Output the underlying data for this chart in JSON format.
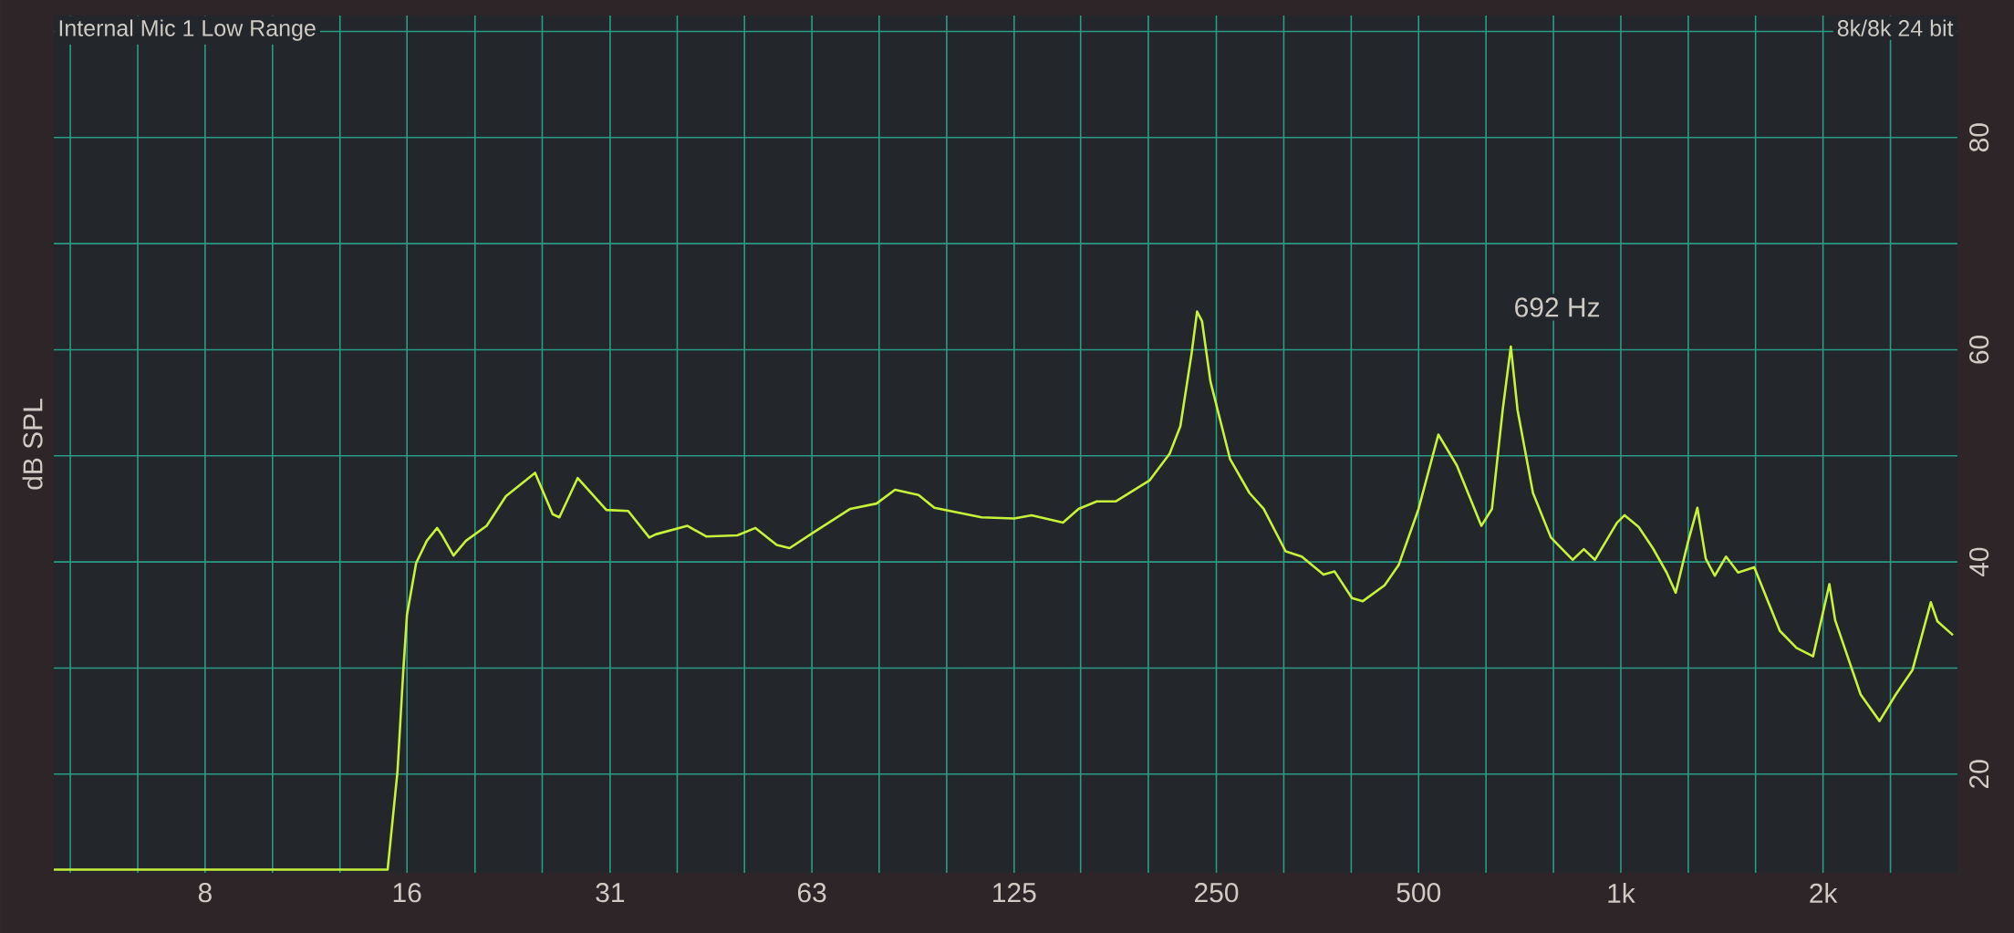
{
  "chart_data": {
    "type": "line",
    "ylabel": "dB SPL",
    "log": "x",
    "grid": true,
    "annotations": [
      "Internal Mic 1 Low Range",
      "8k/8k 24 bit",
      {
        "text": "692 Hz",
        "x": 692,
        "y": 60.3
      }
    ],
    "xlim": [
      4.65,
      3170
    ],
    "ylim": [
      10.7,
      91.5
    ],
    "xticks": [
      {
        "value": 4.92,
        "label": null
      },
      {
        "value": 6.2,
        "label": null
      },
      {
        "value": 7.81,
        "label": "8"
      },
      {
        "value": 9.84,
        "label": null
      },
      {
        "value": 12.4,
        "label": null
      },
      {
        "value": 15.6,
        "label": "16"
      },
      {
        "value": 19.7,
        "label": null
      },
      {
        "value": 24.8,
        "label": null
      },
      {
        "value": 31.3,
        "label": "31"
      },
      {
        "value": 39.4,
        "label": null
      },
      {
        "value": 49.6,
        "label": null
      },
      {
        "value": 62.5,
        "label": "63"
      },
      {
        "value": 78.7,
        "label": null
      },
      {
        "value": 99.2,
        "label": null
      },
      125,
      {
        "value": 157,
        "label": null
      },
      {
        "value": 198,
        "label": null
      },
      250,
      {
        "value": 315,
        "label": null
      },
      {
        "value": 397,
        "label": null
      },
      500,
      {
        "value": 630,
        "label": null
      },
      {
        "value": 794,
        "label": null
      },
      {
        "value": 1000,
        "label": "1k"
      },
      {
        "value": 1260,
        "label": null
      },
      {
        "value": 1587,
        "label": null
      },
      {
        "value": 2000,
        "label": "2k"
      },
      {
        "value": 2520,
        "label": null
      }
    ],
    "yticks": [
      20,
      {
        "value": 30,
        "label": null
      },
      40,
      {
        "value": 50,
        "label": null
      },
      60,
      {
        "value": 70,
        "label": null
      },
      80,
      {
        "value": 90,
        "label": null
      }
    ],
    "x": [
      4.65,
      14.6,
      15.1,
      15.4,
      15.6,
      16.1,
      16.7,
      17.3,
      17.6,
      18.3,
      19.1,
      20.5,
      21.9,
      24.2,
      25.7,
      26.3,
      28.0,
      30.9,
      33.3,
      35.8,
      36.6,
      40.8,
      43.5,
      48.4,
      51.5,
      55.4,
      57.9,
      62.9,
      71.3,
      78.0,
      83.1,
      90.1,
      95.1,
      111.8,
      125,
      132.7,
      147.8,
      155.9,
      166,
      177,
      199,
      213,
      221,
      229.6,
      234,
      238,
      245,
      262,
      280,
      294,
      317,
      335,
      361,
      375,
      398,
      413,
      445,
      467,
      500,
      535,
      570,
      620,
      643,
      667,
      686,
      702,
      740,
      787,
      848,
      881,
      915,
      987,
      1013,
      1063,
      1116,
      1170,
      1207,
      1258,
      1300,
      1338,
      1380,
      1434,
      1495,
      1580,
      1725,
      1826,
      1933,
      2044,
      2085,
      2275,
      2427,
      2566,
      2717,
      2894,
      2960,
      3122
    ],
    "series": [
      {
        "color": "#c6f23a",
        "values": [
          11,
          11,
          20.2,
          29.6,
          35,
          39.9,
          42,
          43.2,
          42.5,
          40.6,
          42,
          43.4,
          46.2,
          48.4,
          44.5,
          44.2,
          47.9,
          44.9,
          44.8,
          42.3,
          42.6,
          43.4,
          42.4,
          42.5,
          43.2,
          41.6,
          41.3,
          42.8,
          45,
          45.5,
          46.8,
          46.3,
          45.1,
          44.2,
          44.1,
          44.4,
          43.7,
          45,
          45.7,
          45.7,
          47.7,
          50.2,
          52.8,
          59.6,
          63.6,
          62.7,
          57,
          49.7,
          46.5,
          45,
          41,
          40.5,
          38.8,
          39.1,
          36.6,
          36.3,
          37.8,
          39.7,
          45,
          52,
          49.1,
          43.4,
          45,
          54.3,
          60.3,
          54.3,
          46.5,
          42.3,
          40.2,
          41.2,
          40.2,
          43.7,
          44.4,
          43.3,
          41.3,
          39,
          37.1,
          41.8,
          45.1,
          40.3,
          38.7,
          40.5,
          39,
          39.5,
          33.5,
          31.9,
          31.1,
          37.9,
          34.5,
          27.5,
          25,
          27.5,
          29.8,
          36.2,
          34.4,
          33.1
        ]
      }
    ]
  }
}
